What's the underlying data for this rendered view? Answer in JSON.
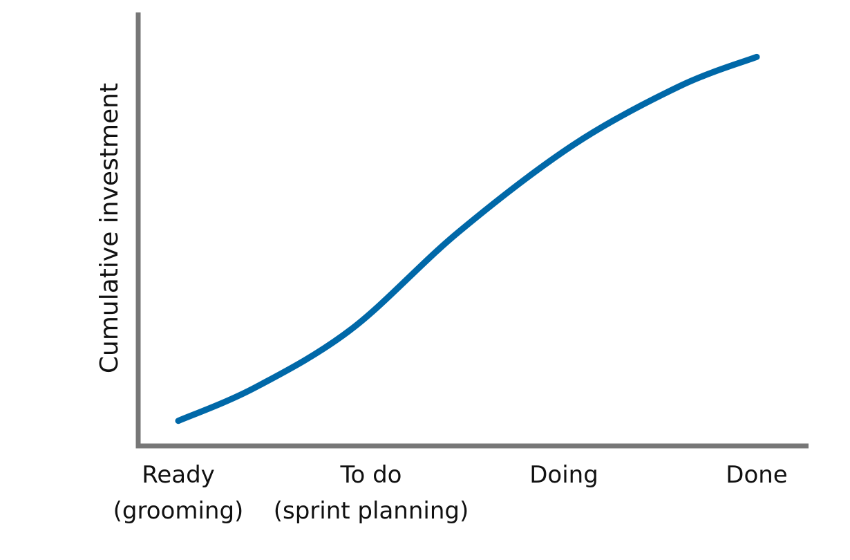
{
  "chart_data": {
    "type": "line",
    "title": "",
    "xlabel": "",
    "ylabel": "Cumulative investment",
    "categories": [
      {
        "line1": "Ready",
        "line2": "(grooming)"
      },
      {
        "line1": "To do",
        "line2": "(sprint planning)"
      },
      {
        "line1": "Doing",
        "line2": ""
      },
      {
        "line1": "Done",
        "line2": ""
      }
    ],
    "series": [
      {
        "color": "#0068A8",
        "points": [
          {
            "x": 0.0,
            "y": 0.06
          },
          {
            "x": 0.4,
            "y": 0.14
          },
          {
            "x": 0.9,
            "y": 0.28
          },
          {
            "x": 1.45,
            "y": 0.51
          },
          {
            "x": 2.05,
            "y": 0.72
          },
          {
            "x": 2.6,
            "y": 0.86
          },
          {
            "x": 3.0,
            "y": 0.93
          }
        ]
      }
    ],
    "xlim": [
      -0.2,
      3.2
    ],
    "ylim": [
      0,
      1
    ],
    "grid": false,
    "axis_color": "#777777"
  }
}
